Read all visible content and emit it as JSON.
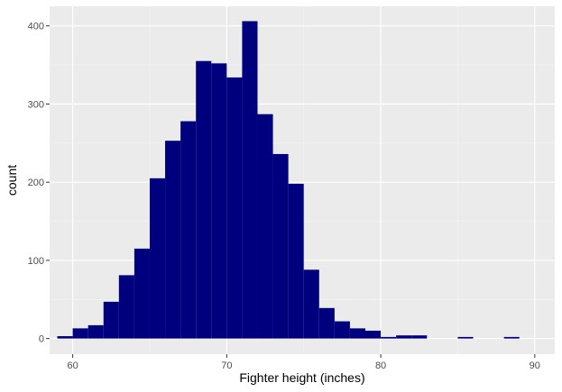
{
  "chart_data": {
    "type": "bar",
    "subtype": "histogram",
    "title": "",
    "xlabel": "Fighter height (inches)",
    "ylabel": "count",
    "xlim": [
      58.5,
      91.3
    ],
    "ylim": [
      -20,
      425
    ],
    "x_ticks": [
      60,
      70,
      80,
      90
    ],
    "y_ticks": [
      0,
      100,
      200,
      300,
      400
    ],
    "bin_width": 1,
    "bin_starts": [
      59,
      60,
      61,
      62,
      63,
      64,
      65,
      66,
      67,
      68,
      69,
      70,
      71,
      72,
      73,
      74,
      75,
      76,
      77,
      78,
      79,
      80,
      81,
      82,
      83,
      84,
      85,
      86,
      87,
      88,
      89
    ],
    "values": [
      3,
      13,
      17,
      47,
      81,
      115,
      205,
      253,
      278,
      355,
      352,
      334,
      406,
      287,
      236,
      198,
      88,
      39,
      22,
      13,
      10,
      2,
      4,
      4,
      0,
      0,
      2,
      0,
      0,
      2,
      0
    ],
    "grid": true,
    "legend": "none",
    "colors": {
      "bar": "#00007f",
      "panel": "#ebebeb",
      "grid_major": "#ffffff",
      "grid_minor": "#f5f5f5",
      "tick_label": "#4d4d4d"
    }
  }
}
